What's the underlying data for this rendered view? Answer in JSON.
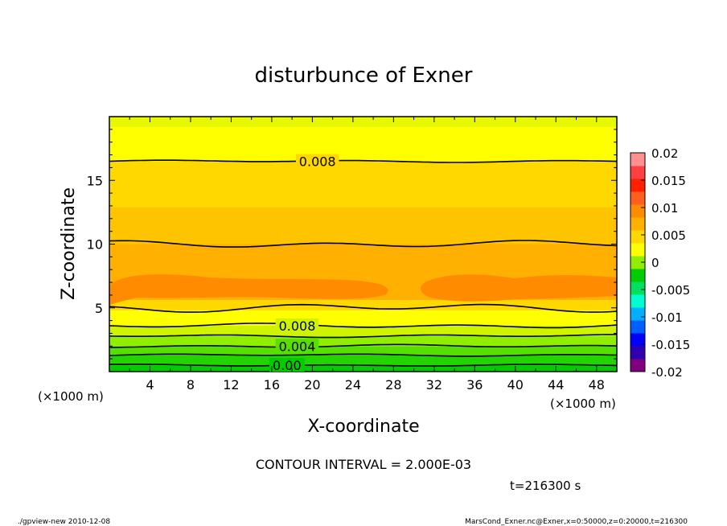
{
  "chart_data": {
    "type": "contour",
    "title": "disturbunce of Exner",
    "xlabel": "X-coordinate",
    "ylabel": "Z-coordinate",
    "xunit": "(×1000 m)",
    "yunit": "(×1000 m)",
    "xlim": [
      0,
      50
    ],
    "ylim": [
      0,
      20
    ],
    "xticks": [
      4,
      8,
      12,
      16,
      20,
      24,
      28,
      32,
      36,
      40,
      44,
      48
    ],
    "yticks": [
      5,
      10,
      15
    ],
    "contour_interval_text": "CONTOUR INTERVAL = 2.000E-03",
    "time_text": "t=216300 s",
    "contour_labels": [
      {
        "text": "0.008",
        "x": 20.5,
        "z": 16.5
      },
      {
        "text": "0.008",
        "x": 18.5,
        "z": 3.6
      },
      {
        "text": "0.004",
        "x": 18.5,
        "z": 2.0
      },
      {
        "text": "0.00",
        "x": 17.5,
        "z": 0.5
      }
    ],
    "colorbar": {
      "ticks": [
        "0.02",
        "0.015",
        "0.01",
        "0.005",
        "0",
        "-0.005",
        "-0.01",
        "-0.015",
        "-0.02"
      ],
      "range": [
        -0.02,
        0.02
      ],
      "colors": [
        "#800080",
        "#3000b0",
        "#0000ff",
        "#0060ff",
        "#00b0ff",
        "#00ffd0",
        "#00e060",
        "#00cc00",
        "#90ee00",
        "#ffff00",
        "#ffd800",
        "#ffb000",
        "#ff8c00",
        "#ff6020",
        "#ff2000",
        "#ff4040",
        "#ff9090"
      ]
    }
  },
  "footer": {
    "left": "./gpview-new   2010-12-08",
    "right": "MarsCond_Exner.nc@Exner,x=0:50000,z=0:20000,t=216300"
  }
}
